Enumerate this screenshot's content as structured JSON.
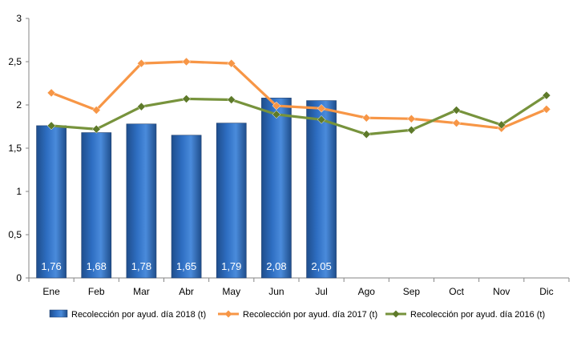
{
  "chart_data": {
    "type": "bar",
    "title": "",
    "xlabel": "",
    "ylabel": "",
    "ylim": [
      0,
      3
    ],
    "yticks": [
      0,
      0.5,
      1,
      1.5,
      2,
      2.5,
      3
    ],
    "ytick_labels": [
      "0",
      "0,5",
      "1",
      "1,5",
      "2",
      "2,5",
      "3"
    ],
    "grid": false,
    "legend_position": "bottom",
    "categories": [
      "Ene",
      "Feb",
      "Mar",
      "Abr",
      "May",
      "Jun",
      "Jul",
      "Ago",
      "Sep",
      "Oct",
      "Nov",
      "Dic"
    ],
    "bar_series": {
      "name": "Recolección por ayud. día 2018 (t)",
      "color": "#2E6EC2",
      "values": [
        1.76,
        1.68,
        1.78,
        1.65,
        1.79,
        2.08,
        2.05
      ],
      "data_labels": [
        "1,76",
        "1,68",
        "1,78",
        "1,65",
        "1,79",
        "2,08",
        "2,05"
      ]
    },
    "line_series": [
      {
        "name": "Recolección por ayud. día 2017 (t)",
        "color": "#F79646",
        "marker_color": "#F79646",
        "values": [
          2.14,
          1.94,
          2.48,
          2.5,
          2.48,
          1.99,
          1.96,
          1.85,
          1.84,
          1.79,
          1.73,
          1.95
        ]
      },
      {
        "name": "Recolección por ayud. día 2016 (t)",
        "color": "#77933C",
        "marker_color": "#5E7A2A",
        "values": [
          1.76,
          1.72,
          1.98,
          2.07,
          2.06,
          1.89,
          1.83,
          1.66,
          1.71,
          1.94,
          1.77,
          2.11
        ]
      }
    ]
  }
}
